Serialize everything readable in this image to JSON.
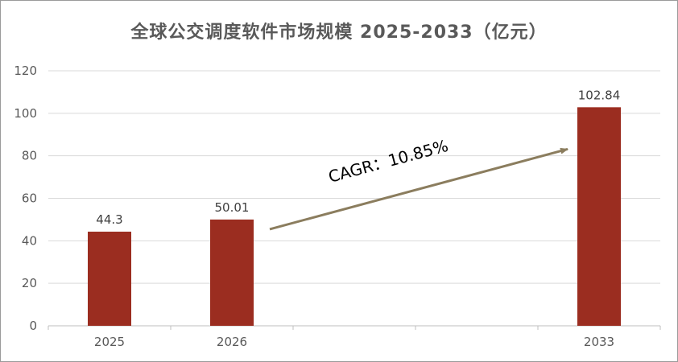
{
  "chart_data": {
    "type": "bar",
    "title": "全球公交调度软件市场规模 2025-2033（亿元）",
    "categories": [
      "2025",
      "2026",
      "",
      "",
      "2033"
    ],
    "values": [
      44.3,
      50.01,
      null,
      null,
      102.84
    ],
    "data_labels": [
      "44.3",
      "50.01",
      "",
      "",
      "102.84"
    ],
    "ylim": [
      0,
      120
    ],
    "yticks": [
      0,
      20,
      40,
      60,
      80,
      100,
      120
    ],
    "grid": true,
    "legend": "none",
    "bar_color": "#9B2D20",
    "annotation": {
      "text": "CAGR：10.85%",
      "arrow_color": "#8B7D5E",
      "from_category": "2026",
      "to_category": "2033"
    }
  }
}
